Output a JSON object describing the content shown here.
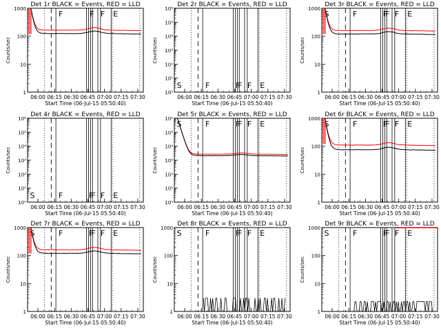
{
  "figure": {
    "time_labels": [
      "06:00",
      "06:15",
      "06:30",
      "06:45",
      "07:00",
      "07:15",
      "07:30"
    ],
    "ylabel": "Counts/sec",
    "xlabel": "Start Time (06-Jul-15 05:50:40)",
    "colors": {
      "events": "#000000",
      "lld": "#ff0000"
    }
  },
  "chart_data": [
    {
      "type": "line",
      "title": "Det 1r BLACK = Events, RED = LLD",
      "scale": "log",
      "ylim": [
        1,
        1000
      ],
      "ytick_labels": [
        "1",
        "10",
        "100",
        "1000"
      ],
      "markers": [
        "F",
        "F",
        "F",
        "E"
      ],
      "mode": "high",
      "series": [
        {
          "name": "Events",
          "level": 125
        },
        {
          "name": "LLD",
          "level": 165
        }
      ]
    },
    {
      "type": "line",
      "title": "Det 2r BLACK = Events, RED = LLD",
      "scale": "log",
      "ylim": [
        1,
        1000000
      ],
      "ytick_labels": [
        "10⁰",
        "10¹",
        "10²",
        "10³",
        "10⁴",
        "10⁵",
        "10⁶"
      ],
      "markers": [
        "S",
        "F",
        "F",
        "F",
        "F",
        "E"
      ],
      "mode": "empty",
      "series": []
    },
    {
      "type": "line",
      "title": "Det 3r BLACK = Events, RED = LLD",
      "scale": "log",
      "ylim": [
        1,
        1000
      ],
      "ytick_labels": [
        "1",
        "10",
        "100",
        "1000"
      ],
      "markers": [
        "S",
        "F",
        "F",
        "F",
        "F",
        "E"
      ],
      "mode": "high",
      "series": [
        {
          "name": "Events",
          "level": 120
        },
        {
          "name": "LLD",
          "level": 160
        }
      ]
    },
    {
      "type": "line",
      "title": "Det 4r BLACK = Events, RED = LLD",
      "scale": "log",
      "ylim": [
        1,
        1000000
      ],
      "ytick_labels": [
        "10⁰",
        "10¹",
        "10²",
        "10³",
        "10⁴",
        "10⁵",
        "10⁶"
      ],
      "markers": [
        "S",
        "F",
        "F",
        "F",
        "F",
        "E"
      ],
      "mode": "empty",
      "series": []
    },
    {
      "type": "line",
      "title": "Det 5r BLACK = Events, RED = LLD",
      "scale": "log",
      "ylim": [
        1,
        1000000
      ],
      "ytick_labels": [
        "10⁰",
        "10¹",
        "10²",
        "10³",
        "10⁴",
        "10⁵",
        "10⁶"
      ],
      "markers": [
        "S",
        "F",
        "F",
        "F",
        "F",
        "E"
      ],
      "mode": "mid",
      "series": [
        {
          "name": "Events",
          "level": 2100
        },
        {
          "name": "LLD",
          "level": 2700
        }
      ]
    },
    {
      "type": "line",
      "title": "Det 6r BLACK = Events, RED = LLD",
      "scale": "log",
      "ylim": [
        1,
        1000
      ],
      "ytick_labels": [
        "1",
        "10",
        "100",
        "1000"
      ],
      "markers": [
        "S",
        "F",
        "F",
        "F",
        "F",
        "E"
      ],
      "mode": "high",
      "series": [
        {
          "name": "Events",
          "level": 75
        },
        {
          "name": "LLD",
          "level": 110
        }
      ]
    },
    {
      "type": "line",
      "title": "Det 7r BLACK = Events, RED = LLD",
      "scale": "log",
      "ylim": [
        1,
        1000
      ],
      "ytick_labels": [
        "1",
        "10",
        "100",
        "1000"
      ],
      "markers": [
        "S",
        "F",
        "F",
        "F",
        "F",
        "E"
      ],
      "mode": "high",
      "series": [
        {
          "name": "Events",
          "level": 120
        },
        {
          "name": "LLD",
          "level": 160
        }
      ]
    },
    {
      "type": "line",
      "title": "Det 8r BLACK = Events, RED = LLD",
      "scale": "log",
      "ylim": [
        1,
        1000
      ],
      "ytick_labels": [
        "1",
        "10",
        "100",
        "1000"
      ],
      "markers": [
        "S",
        "F",
        "F",
        "F",
        "F",
        "E"
      ],
      "mode": "low",
      "series": [
        {
          "name": "Events",
          "level": 2
        }
      ]
    },
    {
      "type": "line",
      "title": "Det 9r BLACK = Events, RED = LLD",
      "scale": "log",
      "ylim": [
        1,
        1000
      ],
      "ytick_labels": [
        "1",
        "10",
        "100",
        "1000"
      ],
      "markers": [
        "S",
        "F",
        "F",
        "F",
        "F",
        "E"
      ],
      "mode": "low",
      "series": [
        {
          "name": "Events",
          "level": 1.5
        },
        {
          "name": "LLD",
          "level": 1000
        }
      ]
    }
  ]
}
